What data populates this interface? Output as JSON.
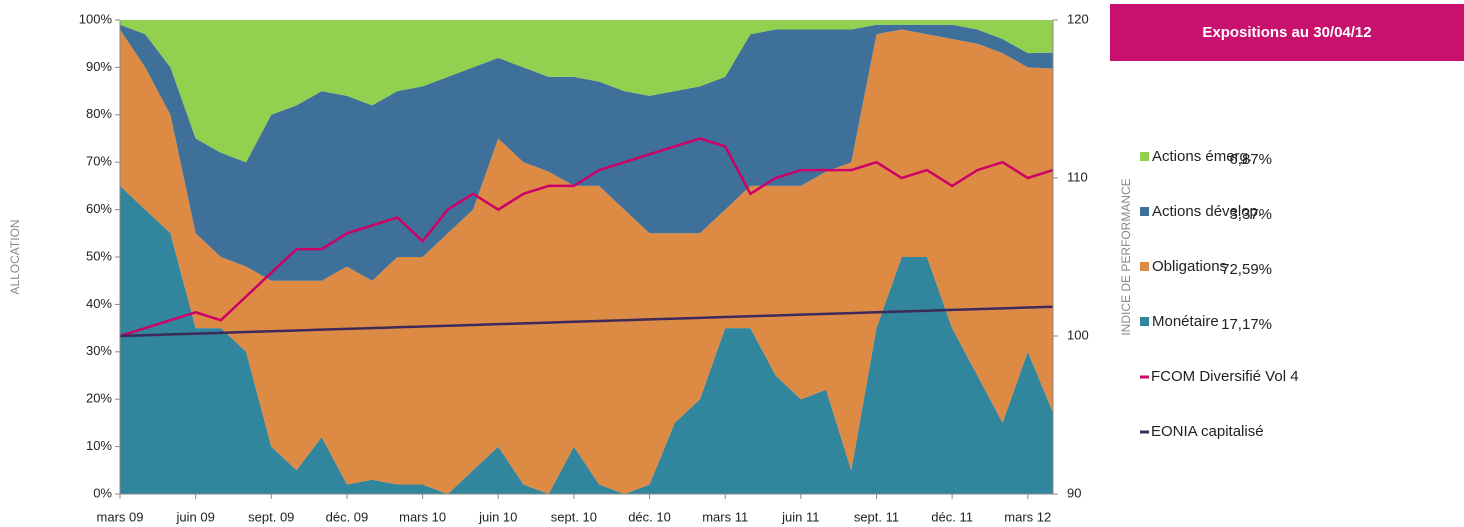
{
  "chart_data": {
    "type": "stacked_area",
    "legend_title": "Expositions au 30/04/12",
    "ylabel": "ALLOCATION",
    "y2label": "INDICE DE PERFORMANCE",
    "categories": [
      "mars 09",
      null,
      null,
      "juin 09",
      null,
      null,
      "sept. 09",
      null,
      null,
      "déc. 09",
      null,
      null,
      "mars 10",
      null,
      null,
      "juin 10",
      null,
      null,
      "sept. 10",
      null,
      null,
      "déc. 10",
      null,
      null,
      "mars 11",
      null,
      null,
      "juin 11",
      null,
      null,
      "sept. 11",
      null,
      null,
      "déc. 11",
      null,
      null,
      "mars 12",
      null
    ],
    "ylim": [
      0,
      100
    ],
    "yticks": [
      {
        "value": 0,
        "label": "0%"
      },
      {
        "value": 10,
        "label": "10%"
      },
      {
        "value": 20,
        "label": "20%"
      },
      {
        "value": 30,
        "label": "30%"
      },
      {
        "value": 40,
        "label": "40%"
      },
      {
        "value": 50,
        "label": "50%"
      },
      {
        "value": 60,
        "label": "60%"
      },
      {
        "value": 70,
        "label": "70%"
      },
      {
        "value": 80,
        "label": "80%"
      },
      {
        "value": 90,
        "label": "90%"
      },
      {
        "value": 100,
        "label": "100%"
      }
    ],
    "y2lim": [
      90,
      120
    ],
    "y2ticks": [
      90,
      100,
      110,
      120
    ],
    "series": [
      {
        "name": "Monétaire",
        "color": "#31859c",
        "exposure_label": "17,17%",
        "values": [
          65,
          60,
          55,
          35,
          35,
          30,
          10,
          5,
          12,
          2,
          3,
          2,
          2,
          0,
          5,
          10,
          2,
          0,
          10,
          2,
          0,
          2,
          15,
          20,
          35,
          35,
          25,
          20,
          22,
          5,
          35,
          50,
          50,
          35,
          25,
          15,
          30,
          17.17
        ]
      },
      {
        "name": "Obligations",
        "color": "#dd8a45",
        "exposure_label": "72,59%",
        "values": [
          33,
          30,
          25,
          20,
          15,
          18,
          35,
          40,
          33,
          46,
          42,
          48,
          48,
          55,
          55,
          65,
          68,
          68,
          55,
          63,
          60,
          53,
          40,
          35,
          25,
          30,
          40,
          45,
          46,
          65,
          62,
          48,
          47,
          61,
          70,
          78,
          60,
          72.59
        ]
      },
      {
        "name": "Actions dévelop.",
        "color": "#3f7099",
        "exposure_label": "3,37%",
        "values": [
          1,
          7,
          10,
          20,
          22,
          22,
          35,
          37,
          40,
          36,
          37,
          35,
          36,
          33,
          30,
          17,
          20,
          20,
          23,
          22,
          25,
          29,
          30,
          31,
          28,
          32,
          33,
          33,
          30,
          28,
          2,
          1,
          2,
          3,
          3,
          3,
          3,
          3.37
        ]
      },
      {
        "name": "Actions émerg.",
        "color": "#92d050",
        "exposure_label": "6,87%",
        "values": [
          1,
          3,
          10,
          25,
          28,
          30,
          20,
          18,
          15,
          16,
          18,
          15,
          14,
          12,
          10,
          8,
          10,
          12,
          12,
          13,
          15,
          16,
          15,
          14,
          12,
          3,
          2,
          2,
          2,
          2,
          1,
          1,
          1,
          1,
          2,
          4,
          7,
          6.87
        ]
      },
      {
        "name": "FCOM Diversifié Vol 4",
        "type": "line",
        "axis": "y2",
        "color": "#cc0066",
        "values": [
          100,
          100.5,
          101,
          101.5,
          101,
          102.5,
          104,
          105.5,
          105.5,
          106.5,
          107,
          107.5,
          106,
          108,
          109,
          108,
          109,
          109.5,
          109.5,
          110.5,
          111,
          111.5,
          112,
          112.5,
          112,
          109,
          110,
          110.5,
          110.5,
          110.5,
          111,
          110,
          110.5,
          109.5,
          110.5,
          111,
          110,
          110.5
        ]
      },
      {
        "name": "EONIA capitalisé",
        "type": "line",
        "axis": "y2",
        "color": "#3d2a5a",
        "values": [
          100,
          100.05,
          100.1,
          100.15,
          100.2,
          100.25,
          100.3,
          100.35,
          100.4,
          100.45,
          100.5,
          100.55,
          100.6,
          100.65,
          100.7,
          100.75,
          100.8,
          100.85,
          100.9,
          100.95,
          101,
          101.05,
          101.1,
          101.15,
          101.2,
          101.25,
          101.3,
          101.35,
          101.4,
          101.45,
          101.5,
          101.55,
          101.6,
          101.65,
          101.7,
          101.75,
          101.8,
          101.85
        ]
      }
    ]
  }
}
